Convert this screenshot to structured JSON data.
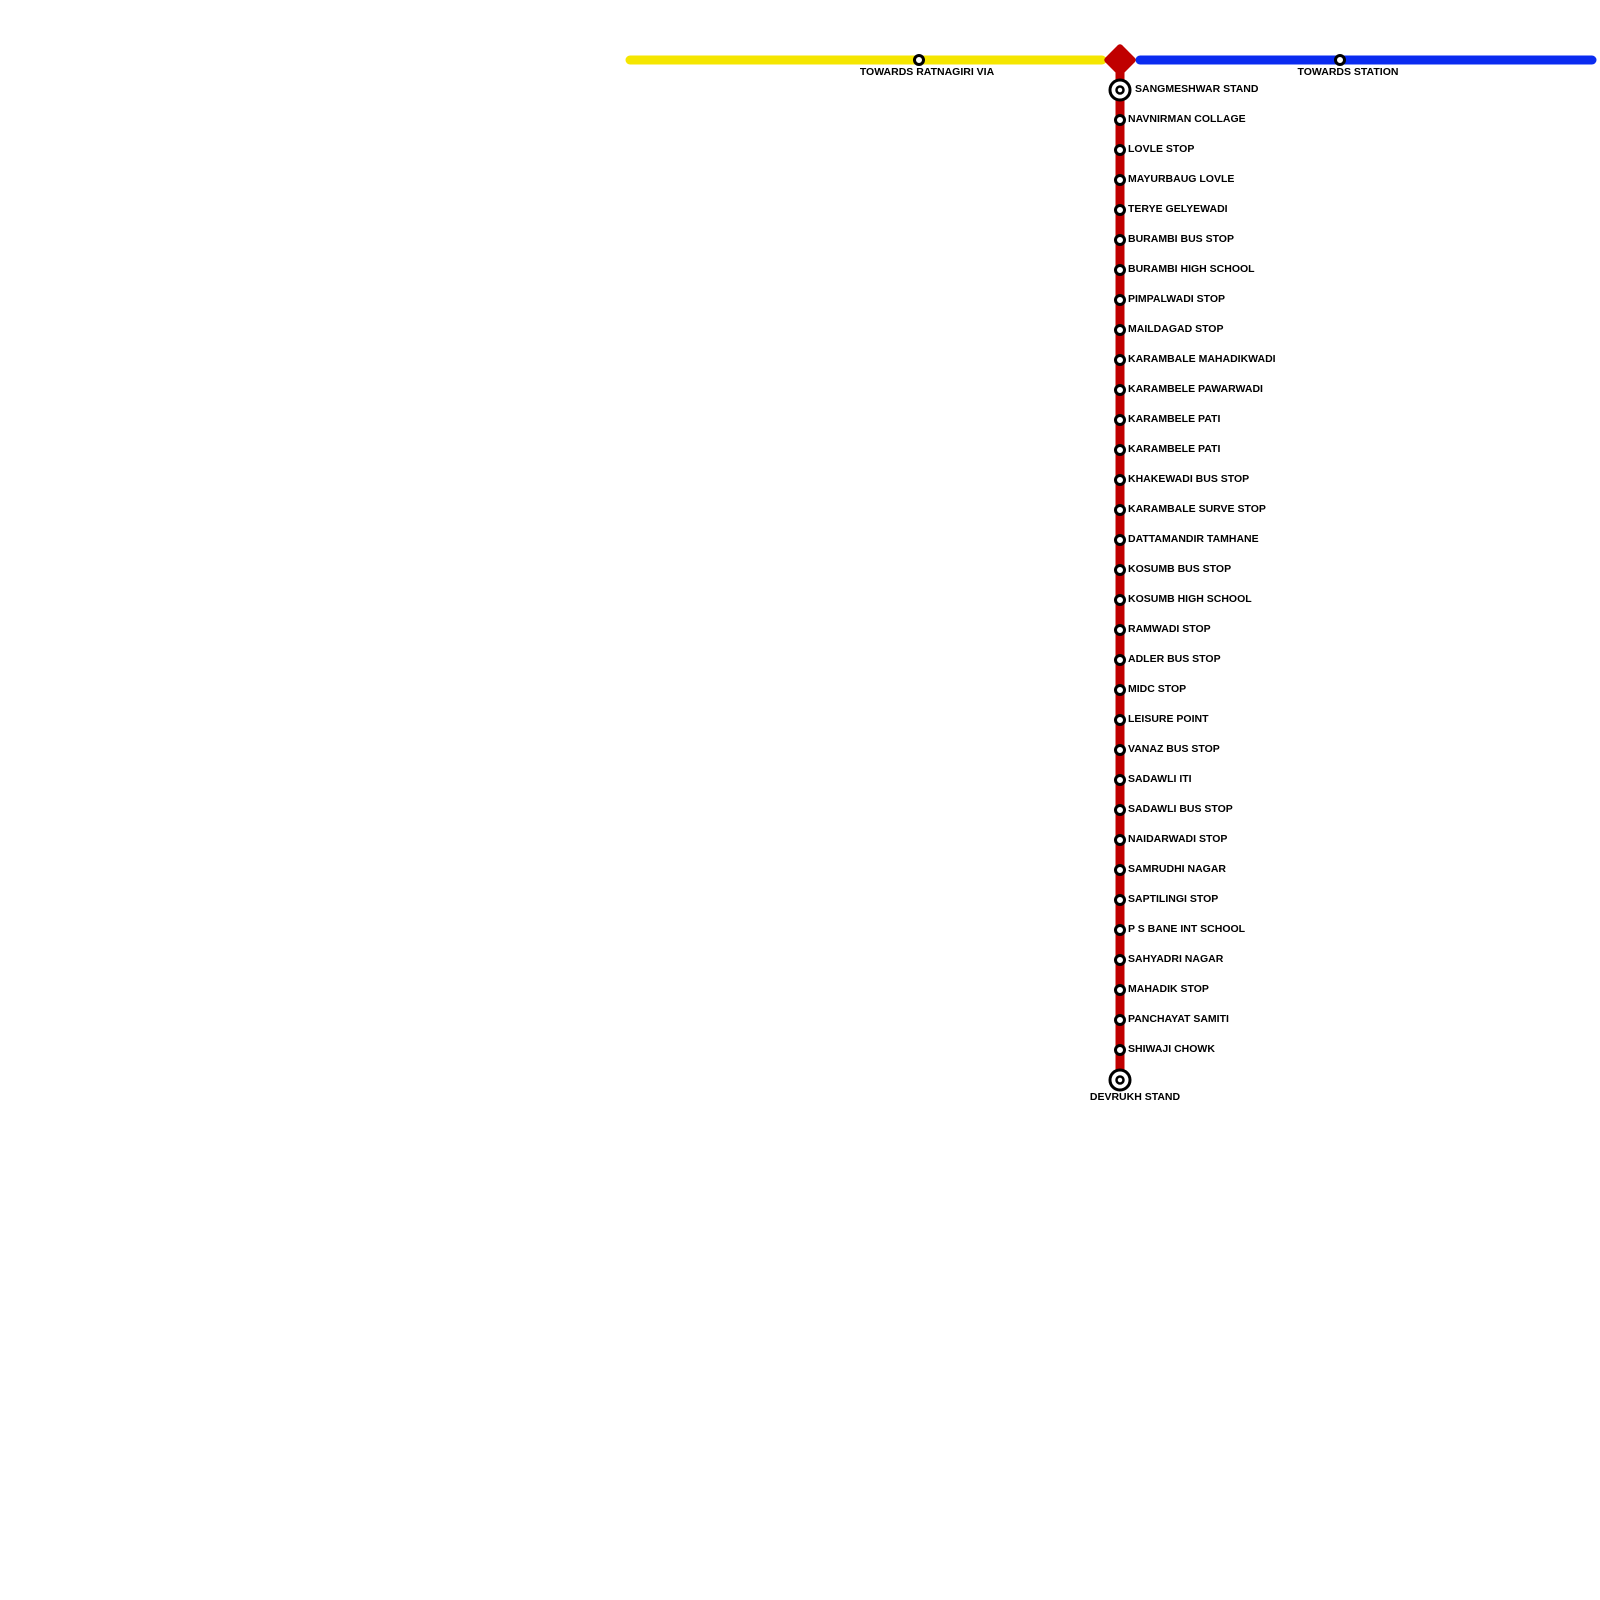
{
  "branches": {
    "left": "TOWARDS RATNAGIRI VIA",
    "right": "TOWARDS STATION"
  },
  "route": {
    "start": "SANGMESHWAR STAND",
    "end": "DEVRUKH STAND",
    "stops": [
      "NAVNIRMAN COLLAGE",
      "LOVLE STOP",
      "MAYURBAUG LOVLE",
      "TERYE GELYEWADI",
      "BURAMBI BUS STOP",
      "BURAMBI HIGH SCHOOL",
      "PIMPALWADI STOP",
      "MAILDAGAD STOP",
      "KARAMBALE MAHADIKWADI",
      "KARAMBELE PAWARWADI",
      "KARAMBELE PATI",
      "KARAMBELE PATI",
      "KHAKEWADI BUS STOP",
      "KARAMBALE SURVE STOP",
      "DATTAMANDIR TAMHANE",
      "KOSUMB BUS STOP",
      "KOSUMB HIGH SCHOOL",
      "RAMWADI STOP",
      "ADLER BUS STOP",
      "MIDC STOP",
      "LEISURE POINT",
      "VANAZ BUS STOP",
      "SADAWLI ITI",
      "SADAWLI BUS STOP",
      "NAIDARWADI STOP",
      "SAMRUDHI NAGAR",
      "SAPTILINGI STOP",
      "P S BANE INT SCHOOL",
      "SAHYADRI NAGAR",
      "MAHADIK STOP",
      "PANCHAYAT SAMITI",
      "SHIWAJI CHOWK"
    ]
  }
}
